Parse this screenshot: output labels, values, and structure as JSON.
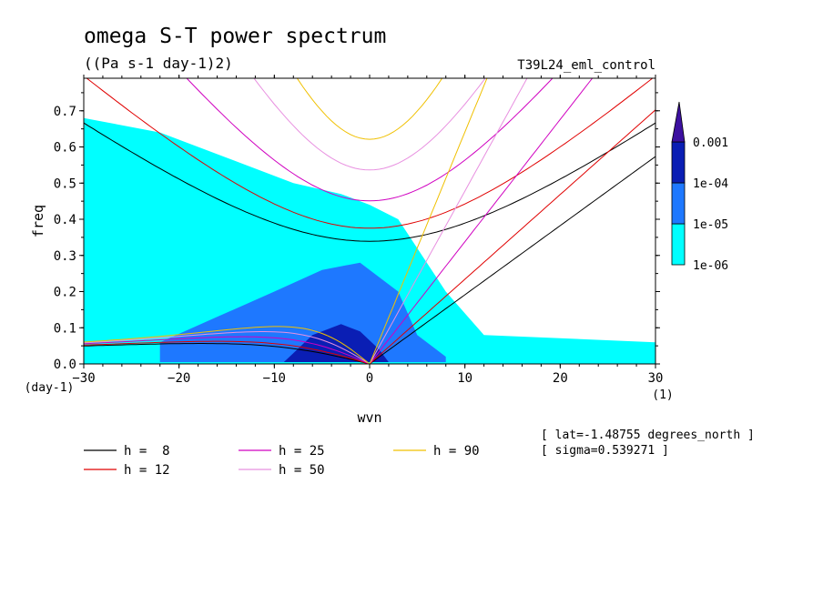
{
  "chart_data": {
    "type": "heatmap",
    "title": "omega S-T power spectrum",
    "subtitle": "((Pa s-1 day-1)2)",
    "run_label": "T39L24_eml_control",
    "xlabel": "wvn",
    "xunit": "(1)",
    "ylabel": "freq",
    "yunit": "(day-1)",
    "xlim": [
      -30,
      30
    ],
    "ylim": [
      0,
      0.79
    ],
    "xticks": [
      -30,
      -20,
      -10,
      0,
      10,
      20,
      30
    ],
    "xtick_labels": [
      "−30",
      "−20",
      "−10",
      "0",
      "10",
      "20",
      "30"
    ],
    "yticks": [
      0.0,
      0.1,
      0.2,
      0.3,
      0.4,
      0.5,
      0.6,
      0.7
    ],
    "ytick_labels": [
      "0.0",
      "0.1",
      "0.2",
      "0.3",
      "0.4",
      "0.5",
      "0.6",
      "0.7"
    ],
    "colorbar": {
      "levels": [
        "1e-06",
        "1e-05",
        "1e-04",
        "0.001"
      ],
      "colors": [
        "#00ffff",
        "#1e78ff",
        "#0a1eb4",
        "#3c10a0"
      ]
    },
    "contour_regions": [
      {
        "level": "1e-06",
        "color": "#00ffff",
        "polygon": [
          [
            -30,
            0.02
          ],
          [
            -30,
            0.68
          ],
          [
            -22,
            0.64
          ],
          [
            -15,
            0.57
          ],
          [
            -8,
            0.5
          ],
          [
            -3,
            0.47
          ],
          [
            0,
            0.44
          ],
          [
            3,
            0.4
          ],
          [
            8,
            0.2
          ],
          [
            12,
            0.08
          ],
          [
            30,
            0.06
          ],
          [
            30,
            0.0
          ],
          [
            -30,
            0.0
          ]
        ]
      },
      {
        "level": "1e-05",
        "color": "#1e78ff",
        "polygon": [
          [
            -22,
            0.005
          ],
          [
            -22,
            0.06
          ],
          [
            -16,
            0.13
          ],
          [
            -10,
            0.2
          ],
          [
            -5,
            0.26
          ],
          [
            -1,
            0.28
          ],
          [
            3,
            0.2
          ],
          [
            5,
            0.08
          ],
          [
            8,
            0.02
          ],
          [
            8,
            0.005
          ]
        ]
      },
      {
        "level": "1e-04",
        "color": "#0a1eb4",
        "polygon": [
          [
            -9,
            0.005
          ],
          [
            -8,
            0.03
          ],
          [
            -6,
            0.08
          ],
          [
            -3,
            0.11
          ],
          [
            -1,
            0.09
          ],
          [
            1,
            0.04
          ],
          [
            2,
            0.005
          ]
        ]
      }
    ],
    "series": [
      {
        "name": "h =  8",
        "color": "#000000"
      },
      {
        "name": "h = 12",
        "color": "#e00000"
      },
      {
        "name": "h = 25",
        "color": "#d000c0"
      },
      {
        "name": "h = 50",
        "color": "#e890e0"
      },
      {
        "name": "h = 90",
        "color": "#f0c000"
      }
    ],
    "annotations": [
      "[ lat=-1.48755 degrees_north ]",
      "[ sigma=0.539271 ]"
    ],
    "grid": false,
    "legend_position": "bottom"
  }
}
